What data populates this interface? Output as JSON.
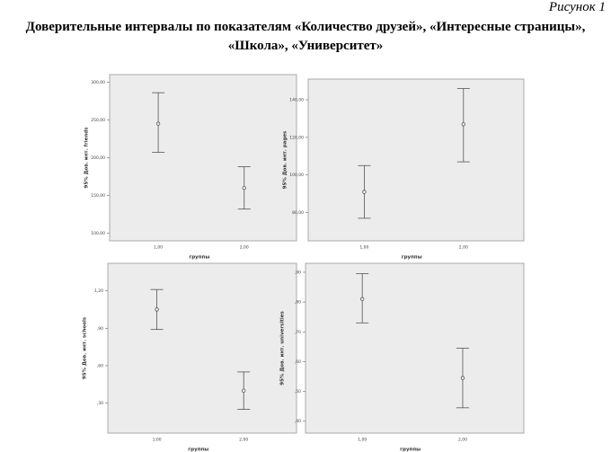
{
  "figure_label": "Рисунок 1",
  "title": "Доверительные интервалы по показателям «Количество друзей», «Интересные страницы», «Школа», «Университет»",
  "chart_data": [
    {
      "type": "errorbar",
      "x_label": "группы",
      "y_label": "95% Дов. инт. friends",
      "categories": [
        "1,00",
        "2,00"
      ],
      "values": [
        245,
        160
      ],
      "ci_low": [
        207,
        132
      ],
      "ci_high": [
        286,
        188
      ],
      "ylim": [
        90,
        310
      ],
      "yticks": [
        {
          "value": 100,
          "label": "100,00"
        },
        {
          "value": 150,
          "label": "150,00"
        },
        {
          "value": 200,
          "label": "200,00"
        },
        {
          "value": 250,
          "label": "250,00"
        },
        {
          "value": 300,
          "label": "300,00"
        }
      ]
    },
    {
      "type": "errorbar",
      "x_label": "группы",
      "y_label": "95% Дов. инт. pages",
      "categories": [
        "1,00",
        "2,00"
      ],
      "values": [
        91,
        127
      ],
      "ci_low": [
        77,
        107
      ],
      "ci_high": [
        105,
        146
      ],
      "ylim": [
        65,
        151
      ],
      "yticks": [
        {
          "value": 80,
          "label": "80,00"
        },
        {
          "value": 100,
          "label": "100,00"
        },
        {
          "value": 120,
          "label": "120,00"
        },
        {
          "value": 140,
          "label": "140,00"
        }
      ]
    },
    {
      "type": "errorbar",
      "x_label": "группы",
      "y_label": "95% Дов. инт. schools",
      "categories": [
        "1,00",
        "2,00"
      ],
      "values": [
        1.05,
        0.4
      ],
      "ci_low": [
        0.89,
        0.25
      ],
      "ci_high": [
        1.21,
        0.55
      ],
      "ylim": [
        0.06,
        1.42
      ],
      "yticks": [
        {
          "value": 0.3,
          "label": ",30"
        },
        {
          "value": 0.6,
          "label": ",60"
        },
        {
          "value": 0.9,
          "label": ",90"
        },
        {
          "value": 1.2,
          "label": "1,20"
        }
      ]
    },
    {
      "type": "errorbar",
      "x_label": "группы",
      "y_label": "95% Дов. инт. universities",
      "categories": [
        "1,00",
        "2,00"
      ],
      "values": [
        0.81,
        0.545
      ],
      "ci_low": [
        0.73,
        0.445
      ],
      "ci_high": [
        0.895,
        0.645
      ],
      "ylim": [
        0.36,
        0.93
      ],
      "yticks": [
        {
          "value": 0.4,
          "label": ",40"
        },
        {
          "value": 0.5,
          "label": ",50"
        },
        {
          "value": 0.6,
          "label": ",60"
        },
        {
          "value": 0.7,
          "label": ",70"
        },
        {
          "value": 0.8,
          "label": ",80"
        },
        {
          "value": 0.9,
          "label": ",90"
        }
      ]
    }
  ]
}
